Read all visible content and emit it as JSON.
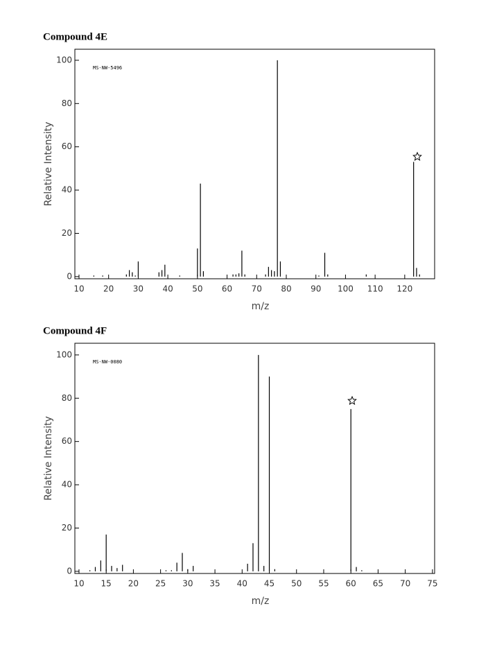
{
  "chart_data": [
    {
      "type": "bar",
      "title": "Compound 4E",
      "annotation": "MS-NW-5496",
      "xlabel": "m/z",
      "ylabel": "Relative Intensity",
      "color": "#000000",
      "x": [
        15,
        18,
        26,
        27,
        28,
        29,
        30,
        37,
        38,
        39,
        44,
        50,
        51,
        52,
        62,
        63,
        64,
        65,
        66,
        73,
        74,
        75,
        76,
        77,
        78,
        91,
        93,
        94,
        107,
        123,
        124,
        125
      ],
      "values": [
        0.5,
        0.5,
        1,
        3,
        2,
        0.5,
        7,
        2,
        3,
        5.5,
        0.5,
        13,
        43,
        2.5,
        1,
        1,
        1.5,
        12,
        1,
        1,
        4.5,
        3,
        2.5,
        100,
        7,
        0.5,
        11,
        1,
        1,
        53,
        4,
        1
      ],
      "xlim": [
        8.6,
        130.1
      ],
      "ylim": [
        -1,
        105.1
      ],
      "xticks": [
        10,
        20,
        30,
        40,
        50,
        60,
        70,
        80,
        90,
        100,
        110,
        120
      ],
      "yticks": [
        0,
        20,
        40,
        60,
        80,
        100
      ]
    },
    {
      "type": "bar",
      "title": "Compound 4F",
      "annotation": "MS-NW-0080",
      "xlabel": "m/z",
      "ylabel": "Relative Intensity",
      "color": "#000000",
      "x": [
        12,
        13,
        14,
        15,
        16,
        17,
        18,
        26,
        27,
        28,
        29,
        30,
        31,
        41,
        42,
        43,
        44,
        45,
        46,
        60,
        61,
        62
      ],
      "values": [
        0.5,
        2,
        5,
        17,
        2.5,
        1.5,
        3,
        0.5,
        0.5,
        4,
        8.5,
        1,
        2.5,
        3.5,
        13,
        100,
        2.5,
        90,
        1,
        75,
        2,
        0.5
      ],
      "xlim": [
        9.24,
        75.4
      ],
      "ylim": [
        -1,
        105.4
      ],
      "xticks": [
        10,
        15,
        20,
        25,
        30,
        35,
        40,
        45,
        50,
        55,
        60,
        65,
        70,
        75
      ],
      "yticks": [
        0,
        20,
        40,
        60,
        80,
        100
      ]
    }
  ]
}
